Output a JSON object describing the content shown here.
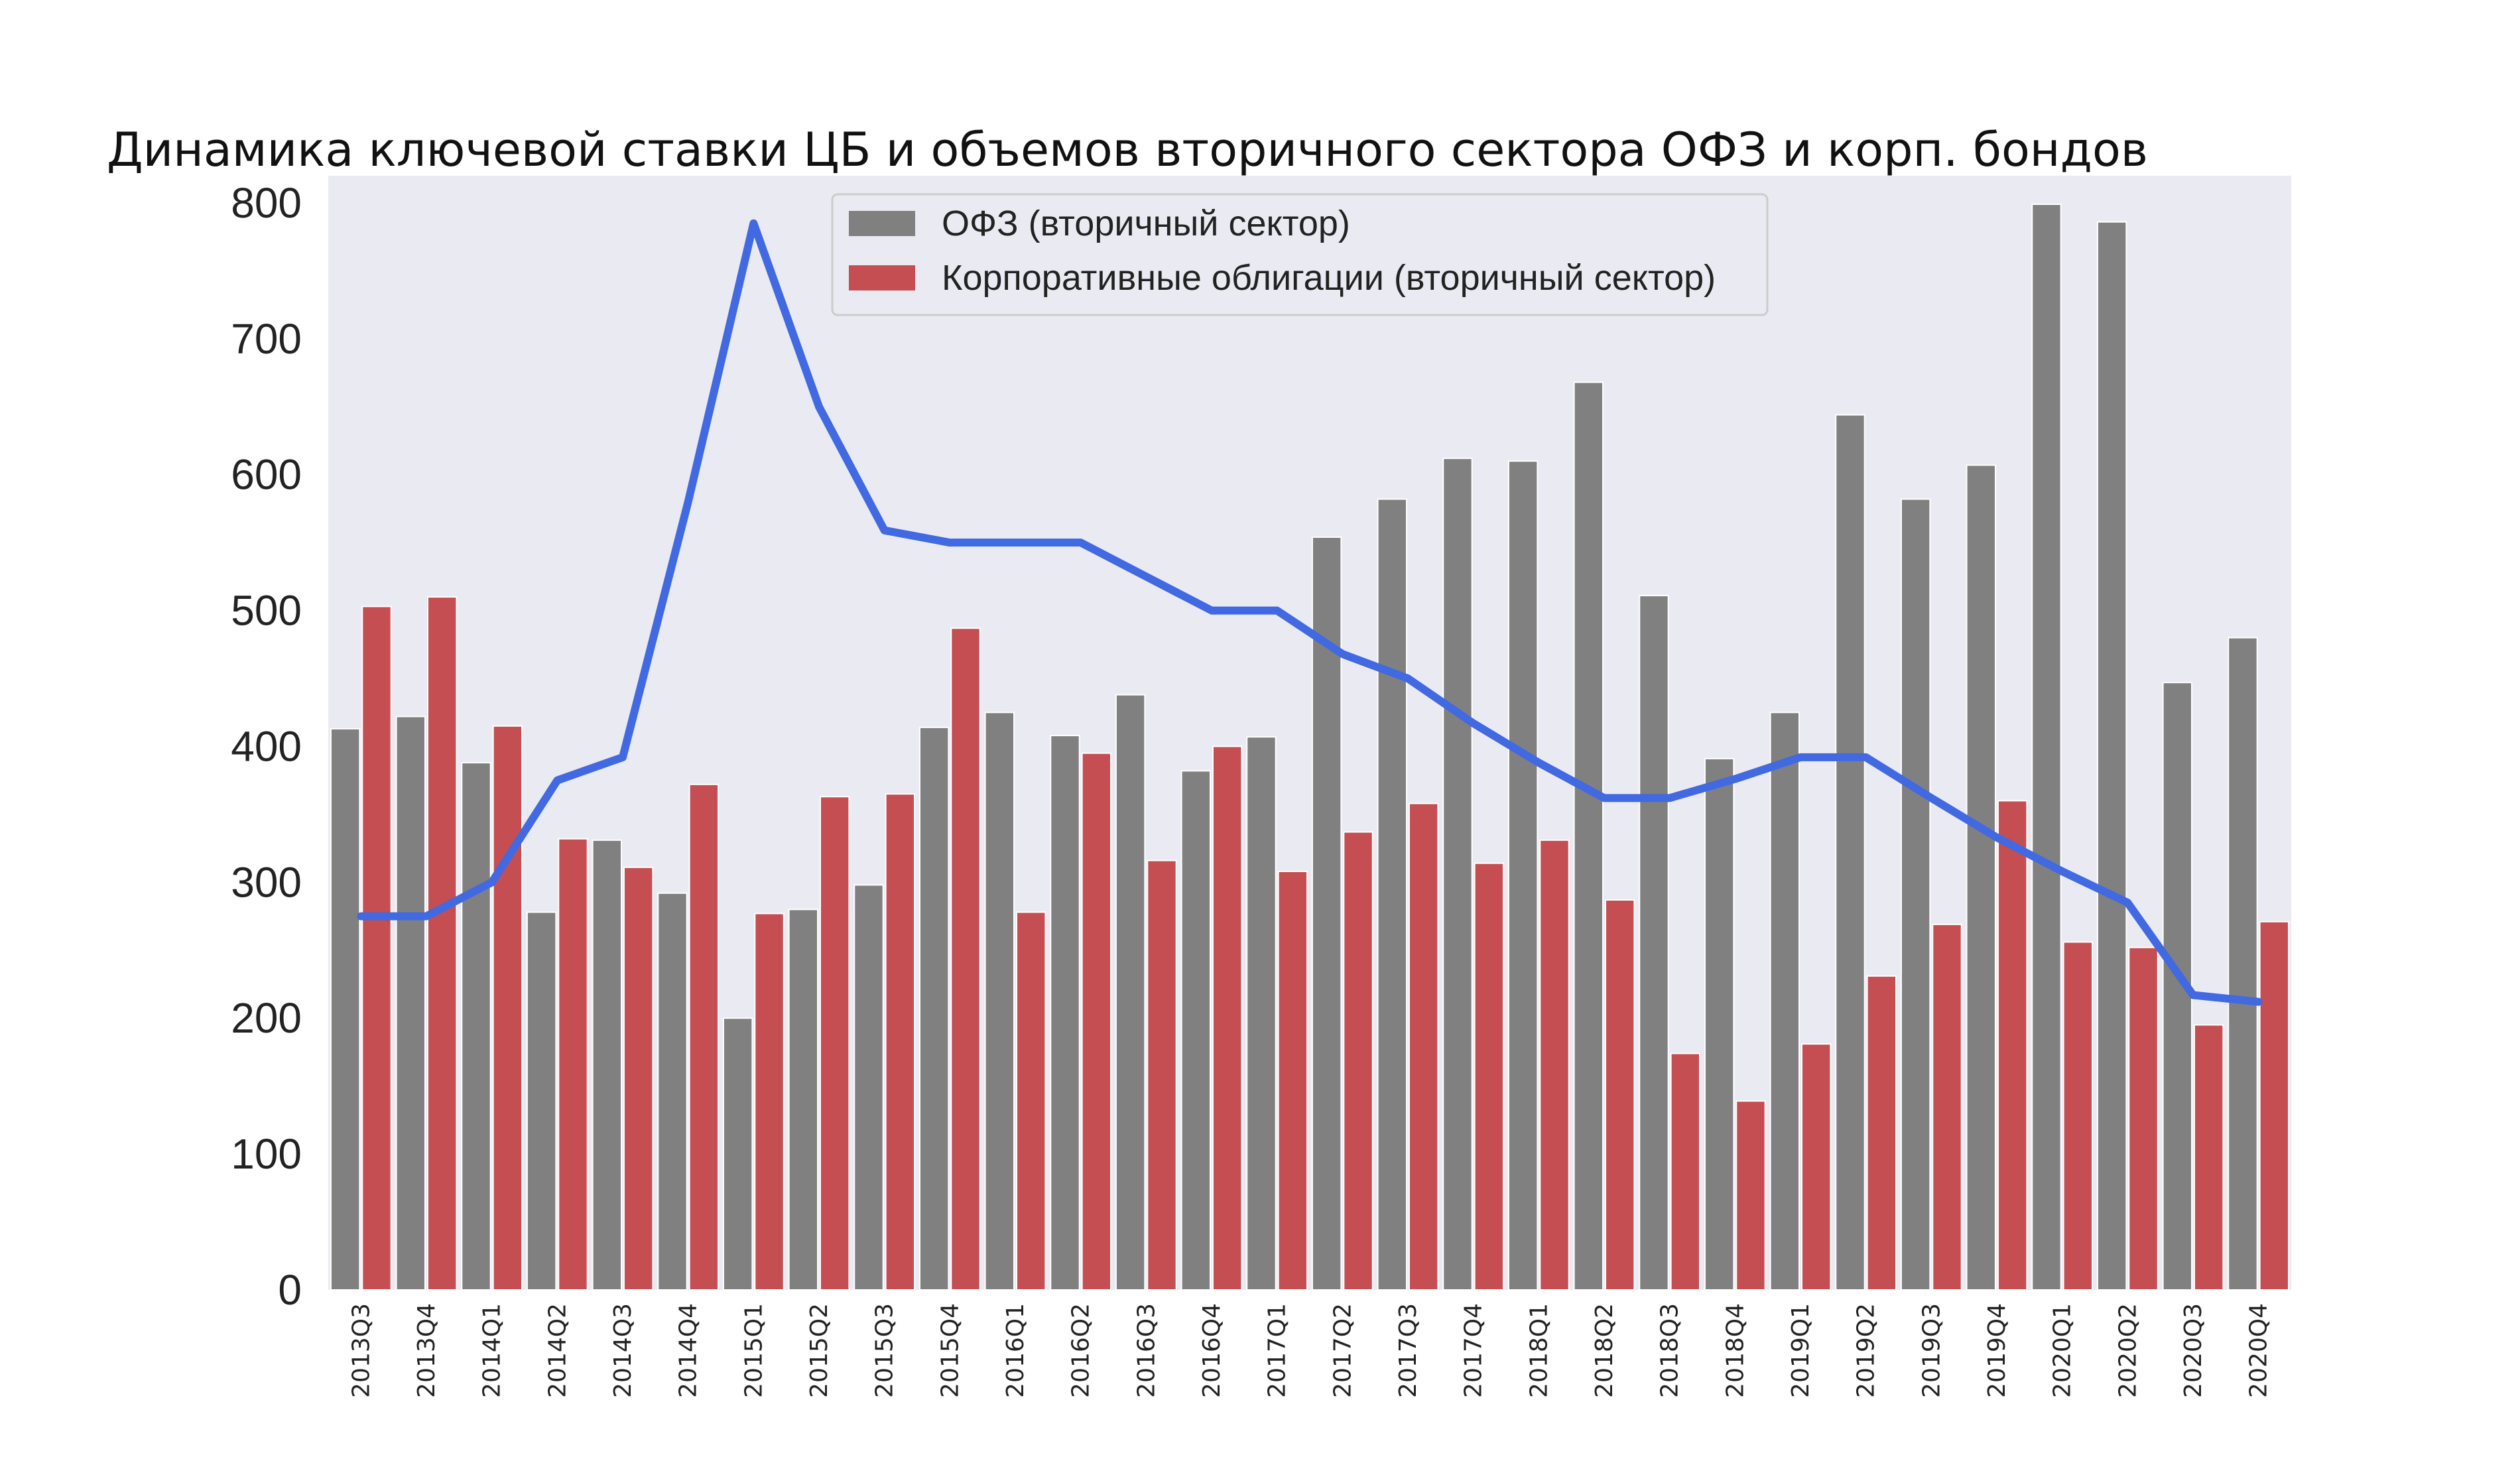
{
  "chart_data": {
    "type": "bar",
    "title": "Динамика ключевой ставки ЦБ и объемов вторичного сектора ОФЗ и корп. бондов",
    "xlabel": "",
    "ylabel": "",
    "ylim": [
      0,
      820
    ],
    "yticks": [
      "0",
      "100",
      "200",
      "300",
      "400",
      "500",
      "600",
      "700",
      "800"
    ],
    "grid": false,
    "legend_position": "top-center",
    "background_color": "#eaeaf2",
    "categories": [
      "2013Q3",
      "2013Q4",
      "2014Q1",
      "2014Q2",
      "2014Q3",
      "2014Q4",
      "2015Q1",
      "2015Q2",
      "2015Q3",
      "2015Q4",
      "2016Q1",
      "2016Q2",
      "2016Q3",
      "2016Q4",
      "2017Q1",
      "2017Q2",
      "2017Q3",
      "2017Q4",
      "2018Q1",
      "2018Q2",
      "2018Q3",
      "2018Q4",
      "2019Q1",
      "2019Q2",
      "2019Q3",
      "2019Q4",
      "2020Q1",
      "2020Q2",
      "2020Q3",
      "2020Q4"
    ],
    "series": [
      {
        "name": "ОФЗ (вторичный сектор)",
        "kind": "bar",
        "color": "#808080",
        "values": [
          413,
          422,
          388,
          278,
          331,
          292,
          200,
          280,
          298,
          414,
          425,
          408,
          438,
          382,
          407,
          554,
          582,
          612,
          610,
          668,
          511,
          391,
          425,
          644,
          582,
          607,
          799,
          786,
          447,
          480
        ]
      },
      {
        "name": "Корпоративные облигации (вторичный сектор)",
        "kind": "bar",
        "color": "#c44e52",
        "values": [
          503,
          510,
          415,
          332,
          311,
          372,
          277,
          363,
          365,
          487,
          278,
          395,
          316,
          400,
          308,
          337,
          358,
          314,
          331,
          287,
          174,
          139,
          181,
          231,
          269,
          360,
          256,
          252,
          195,
          271
        ]
      },
      {
        "kind": "line",
        "color": "#4169e1",
        "values": [
          275,
          275,
          300,
          375,
          392,
          580,
          785,
          650,
          559,
          550,
          550,
          550,
          525,
          500,
          500,
          468,
          450,
          417,
          388,
          362,
          362,
          376,
          392,
          392,
          362,
          333,
          308,
          285,
          217,
          212
        ]
      }
    ]
  }
}
